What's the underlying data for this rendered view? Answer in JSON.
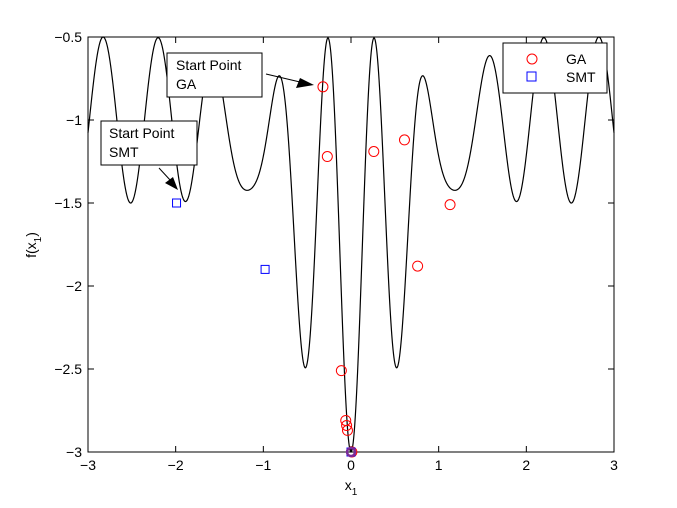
{
  "chart_data": {
    "type": "line",
    "xlabel": {
      "main": "x",
      "sub": "1"
    },
    "ylabel": {
      "main": "f(x",
      "sub": "1",
      "close": ")"
    },
    "xlim": [
      -3,
      3
    ],
    "ylim": [
      -3,
      -0.5
    ],
    "xticks": [
      -3,
      -2,
      -1,
      0,
      1,
      2,
      3
    ],
    "yticks": [
      -3,
      -2.5,
      -2,
      -1.5,
      -1,
      -0.5
    ],
    "xtick_labels": [
      "−3",
      "−2",
      "−1",
      "0",
      "1",
      "2",
      "3"
    ],
    "ytick_labels": [
      "−3",
      "−2.5",
      "−2",
      "−1.5",
      "−1",
      "−0.5"
    ],
    "grid": false,
    "curve": {
      "function": "-0.5 - 2.5*exp(-x^2/0.8)*cos(6x)^2 - (1 - exp(-x^2/0.8))*cos(5x)^2",
      "color": "#000000"
    },
    "series": [
      {
        "name": "GA",
        "marker": "circle",
        "color": "#ff0000",
        "points": [
          [
            -0.32,
            -0.8
          ],
          [
            -0.27,
            -1.22
          ],
          [
            -0.11,
            -2.51
          ],
          [
            -0.06,
            -2.81
          ],
          [
            -0.05,
            -2.84
          ],
          [
            -0.04,
            -2.87
          ],
          [
            0.01,
            -3.0
          ],
          [
            0.26,
            -1.19
          ],
          [
            0.61,
            -1.12
          ],
          [
            0.76,
            -1.88
          ],
          [
            1.13,
            -1.51
          ]
        ]
      },
      {
        "name": "SMT",
        "marker": "square",
        "color": "#0000ff",
        "points": [
          [
            -1.99,
            -1.5
          ],
          [
            -0.98,
            -1.9
          ],
          [
            0.0,
            -3.0
          ]
        ]
      }
    ],
    "highlight_point": {
      "x": 0.0,
      "y": -3.0,
      "color": "#7a2a9a"
    },
    "legend": {
      "position": "top-right"
    },
    "annotations": [
      {
        "lines": [
          "Start Point",
          "GA"
        ],
        "target": [
          -0.32,
          -0.8
        ]
      },
      {
        "lines": [
          "Start Point",
          "SMT"
        ],
        "target": [
          -1.99,
          -1.5
        ]
      }
    ]
  }
}
